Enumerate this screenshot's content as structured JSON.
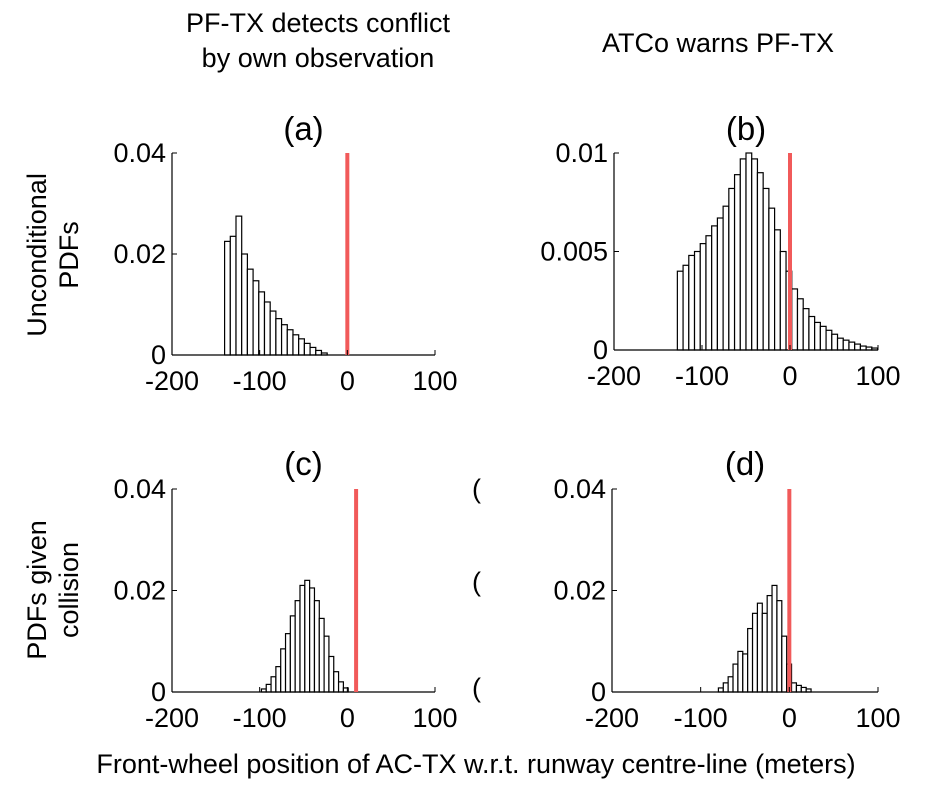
{
  "figure": {
    "column_titles": [
      [
        "PF-TX detects conflict",
        "by own observation"
      ],
      [
        "ATCo warns PF-TX"
      ]
    ],
    "row_titles": [
      [
        "Unconditional",
        "PDFs"
      ],
      [
        "PDFs given",
        "collision"
      ]
    ],
    "xlabel": "Front-wheel position of AC-TX w.r.t. runway centre-line (meters)",
    "clipped_fragments": [
      {
        "text": "(",
        "panel": 2
      },
      {
        "text": "(",
        "panel": 2
      },
      {
        "text": "(",
        "panel": 2
      }
    ]
  },
  "chart_data": [
    {
      "type": "bar",
      "label": "(a)",
      "xlim": [
        -200,
        100
      ],
      "ylim": [
        0,
        0.04
      ],
      "xticks": [
        "-200",
        "-100",
        "0",
        "100"
      ],
      "yticks": [
        "0",
        "0.02",
        "0.04"
      ],
      "reference_line_x": 0,
      "bin_width": 6.5,
      "bins": [
        {
          "x": -140,
          "y": 0.0225
        },
        {
          "x": -133.5,
          "y": 0.0235
        },
        {
          "x": -127,
          "y": 0.0275
        },
        {
          "x": -120.5,
          "y": 0.02
        },
        {
          "x": -114,
          "y": 0.017
        },
        {
          "x": -107.5,
          "y": 0.0147
        },
        {
          "x": -101,
          "y": 0.0125
        },
        {
          "x": -94.5,
          "y": 0.0105
        },
        {
          "x": -88,
          "y": 0.0087
        },
        {
          "x": -81.5,
          "y": 0.0072
        },
        {
          "x": -75,
          "y": 0.006
        },
        {
          "x": -68.5,
          "y": 0.005
        },
        {
          "x": -62,
          "y": 0.004
        },
        {
          "x": -55.5,
          "y": 0.0032
        },
        {
          "x": -49,
          "y": 0.0023
        },
        {
          "x": -42.5,
          "y": 0.0015
        },
        {
          "x": -36,
          "y": 0.0009
        },
        {
          "x": -29.5,
          "y": 0.0004
        }
      ]
    },
    {
      "type": "bar",
      "label": "(b)",
      "xlim": [
        -200,
        100
      ],
      "ylim": [
        0,
        0.01
      ],
      "xticks": [
        "-200",
        "-100",
        "0",
        "100"
      ],
      "yticks": [
        "0",
        "0.005",
        "0.01"
      ],
      "reference_line_x": 0,
      "bin_width": 6.5,
      "bins": [
        {
          "x": -128,
          "y": 0.004
        },
        {
          "x": -121.5,
          "y": 0.0043
        },
        {
          "x": -115,
          "y": 0.0048
        },
        {
          "x": -108.5,
          "y": 0.005
        },
        {
          "x": -102,
          "y": 0.0054
        },
        {
          "x": -95.5,
          "y": 0.0058
        },
        {
          "x": -89,
          "y": 0.0063
        },
        {
          "x": -82.5,
          "y": 0.0067
        },
        {
          "x": -76,
          "y": 0.0073
        },
        {
          "x": -69.5,
          "y": 0.0082
        },
        {
          "x": -63,
          "y": 0.0089
        },
        {
          "x": -56.5,
          "y": 0.0097
        },
        {
          "x": -50,
          "y": 0.01
        },
        {
          "x": -43.5,
          "y": 0.0097
        },
        {
          "x": -37,
          "y": 0.009
        },
        {
          "x": -30.5,
          "y": 0.0082
        },
        {
          "x": -24,
          "y": 0.0072
        },
        {
          "x": -17.5,
          "y": 0.0061
        },
        {
          "x": -11,
          "y": 0.005
        },
        {
          "x": -4.5,
          "y": 0.004
        },
        {
          "x": 2,
          "y": 0.0031
        },
        {
          "x": 8.5,
          "y": 0.0026
        },
        {
          "x": 15,
          "y": 0.0021
        },
        {
          "x": 21.5,
          "y": 0.0017
        },
        {
          "x": 28,
          "y": 0.0014
        },
        {
          "x": 34.5,
          "y": 0.0012
        },
        {
          "x": 41,
          "y": 0.001
        },
        {
          "x": 47.5,
          "y": 0.0008
        },
        {
          "x": 54,
          "y": 0.0006
        },
        {
          "x": 60.5,
          "y": 0.0005
        },
        {
          "x": 67,
          "y": 0.0004
        },
        {
          "x": 73.5,
          "y": 0.0003
        },
        {
          "x": 80,
          "y": 0.0002
        },
        {
          "x": 86.5,
          "y": 0.00015
        },
        {
          "x": 93,
          "y": 0.0001
        }
      ]
    },
    {
      "type": "bar",
      "label": "(c)",
      "xlim": [
        -200,
        100
      ],
      "ylim": [
        0,
        0.04
      ],
      "xticks": [
        "-200",
        "-100",
        "0",
        "100"
      ],
      "yticks": [
        "0",
        "0.02",
        "0.04"
      ],
      "reference_line_x": 10,
      "bin_width": 5.5,
      "bins": [
        {
          "x": -98,
          "y": 0.0006
        },
        {
          "x": -92.5,
          "y": 0.0015
        },
        {
          "x": -87,
          "y": 0.003
        },
        {
          "x": -81.5,
          "y": 0.005
        },
        {
          "x": -76,
          "y": 0.0085
        },
        {
          "x": -70.5,
          "y": 0.0115
        },
        {
          "x": -65,
          "y": 0.015
        },
        {
          "x": -59.5,
          "y": 0.018
        },
        {
          "x": -54,
          "y": 0.021
        },
        {
          "x": -48.5,
          "y": 0.022
        },
        {
          "x": -43,
          "y": 0.0205
        },
        {
          "x": -37.5,
          "y": 0.018
        },
        {
          "x": -32,
          "y": 0.0145
        },
        {
          "x": -26.5,
          "y": 0.011
        },
        {
          "x": -21,
          "y": 0.007
        },
        {
          "x": -15.5,
          "y": 0.004
        },
        {
          "x": -10,
          "y": 0.002
        },
        {
          "x": -4.5,
          "y": 0.0008
        }
      ]
    },
    {
      "type": "bar",
      "label": "(d)",
      "xlim": [
        -200,
        100
      ],
      "ylim": [
        0,
        0.04
      ],
      "xticks": [
        "-200",
        "-100",
        "0",
        "100"
      ],
      "yticks": [
        "0",
        "0.02",
        "0.04"
      ],
      "reference_line_x": 0,
      "bin_width": 5.5,
      "bins": [
        {
          "x": -80,
          "y": 0.0008
        },
        {
          "x": -74.5,
          "y": 0.0018
        },
        {
          "x": -69,
          "y": 0.003
        },
        {
          "x": -63.5,
          "y": 0.0055
        },
        {
          "x": -58,
          "y": 0.008
        },
        {
          "x": -52.5,
          "y": 0.0075
        },
        {
          "x": -47,
          "y": 0.0125
        },
        {
          "x": -41.5,
          "y": 0.0155
        },
        {
          "x": -36,
          "y": 0.0175
        },
        {
          "x": -30.5,
          "y": 0.0155
        },
        {
          "x": -25,
          "y": 0.019
        },
        {
          "x": -19.5,
          "y": 0.021
        },
        {
          "x": -14,
          "y": 0.018
        },
        {
          "x": -8.5,
          "y": 0.011
        },
        {
          "x": -3,
          "y": 0.0055
        },
        {
          "x": 2.5,
          "y": 0.0018
        },
        {
          "x": 8,
          "y": 0.0013
        },
        {
          "x": 13.5,
          "y": 0.0009
        },
        {
          "x": 19,
          "y": 0.0006
        }
      ]
    }
  ]
}
